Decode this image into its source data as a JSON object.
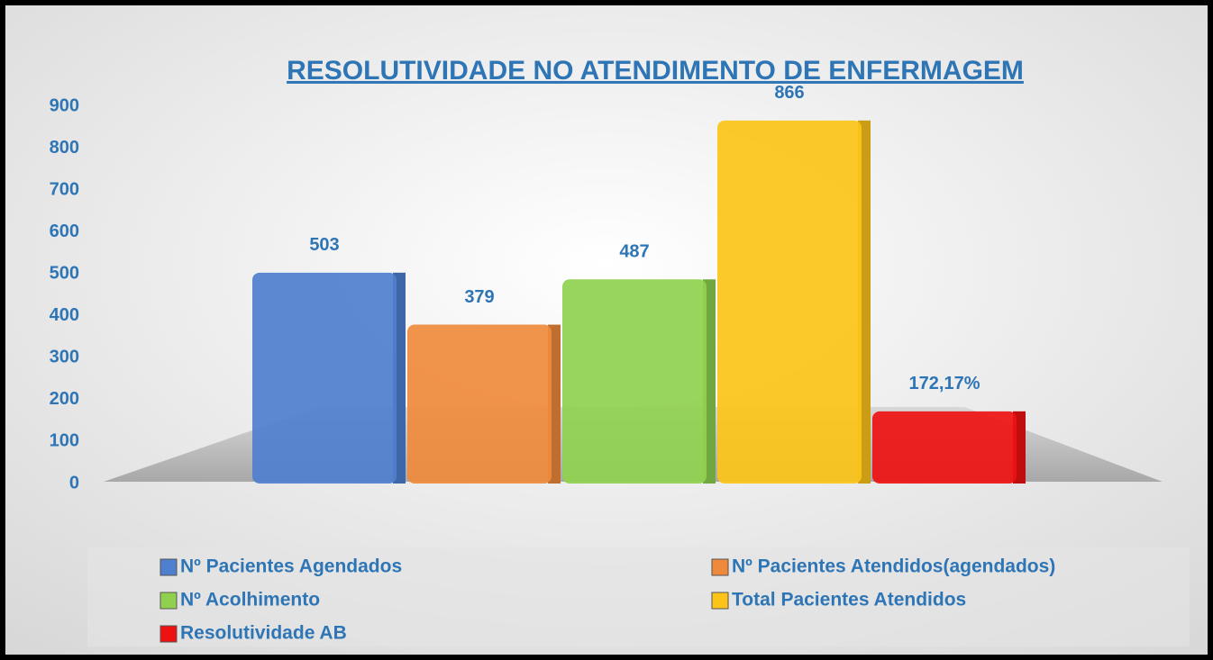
{
  "chart_data": {
    "type": "bar",
    "title": "RESOLUTIVIDADE NO ATENDIMENTO DE ENFERMAGEM",
    "ylim": [
      0,
      900
    ],
    "yticks": [
      0,
      100,
      200,
      300,
      400,
      500,
      600,
      700,
      800,
      900
    ],
    "legend": "bottom",
    "series": [
      {
        "name": "Nº Pacientes Agendados",
        "color": "#4f7fcf",
        "values": [
          503
        ]
      },
      {
        "name": "Nº Pacientes Atendidos(agendados)",
        "color": "#ef8a3c",
        "values": [
          379
        ]
      },
      {
        "name": "Nº Acolhimento",
        "color": "#8fd14f",
        "values": [
          487
        ]
      },
      {
        "name": "Total Pacientes Atendidos",
        "color": "#fcc419",
        "values": [
          866
        ]
      },
      {
        "name": "Resolutividade AB",
        "color": "#ee1111",
        "values": [
          172.17
        ],
        "value_labels": [
          "172,17%"
        ]
      }
    ]
  }
}
